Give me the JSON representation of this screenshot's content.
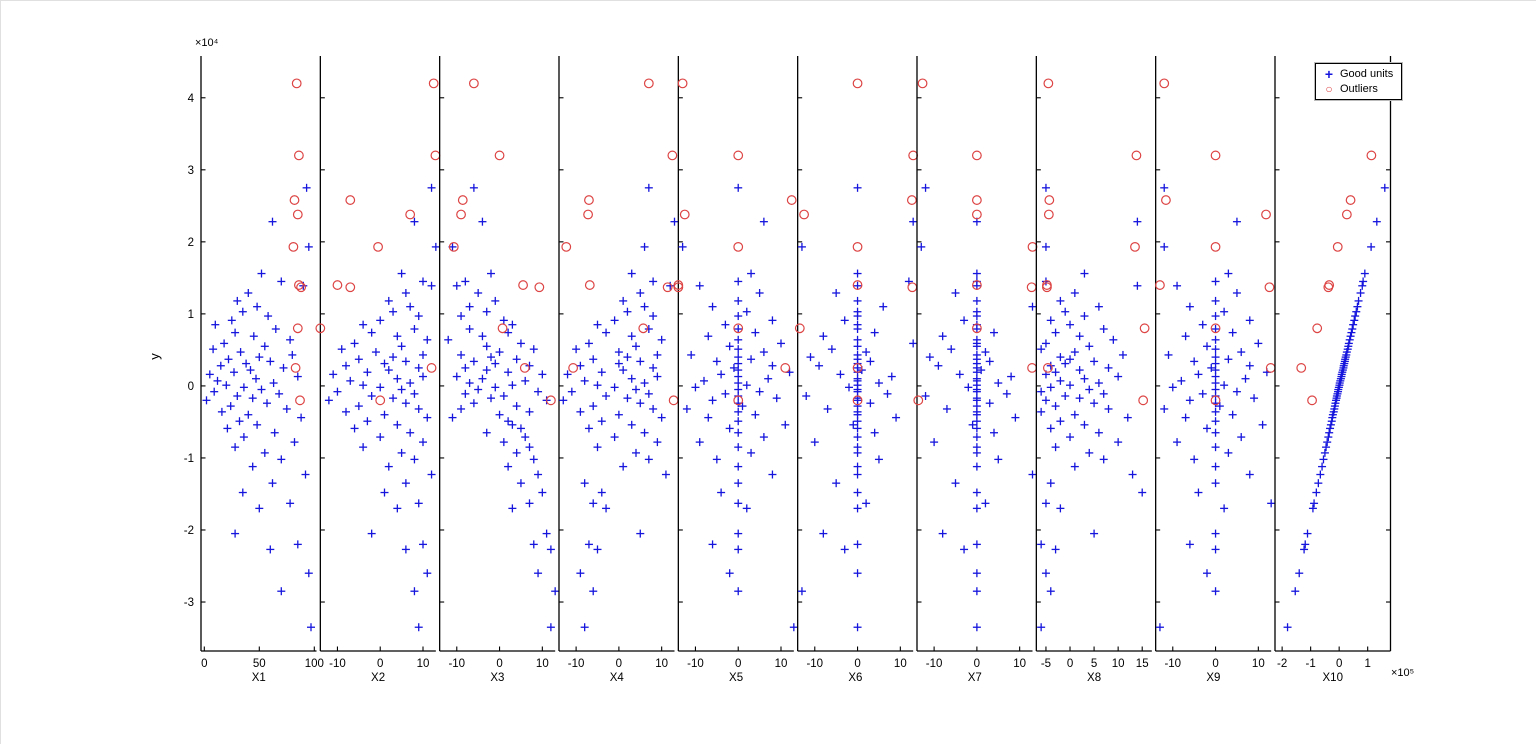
{
  "figure": {
    "ylabel": "y",
    "y_exponent_label": "×10⁴",
    "x10_exponent_label": "×10⁵"
  },
  "legend": {
    "good": "Good units",
    "outliers": "Outliers"
  },
  "chart_data": {
    "type": "scatter",
    "title": "",
    "xlabel": "",
    "ylabel": "y",
    "legend_position": "top-right",
    "grid": false,
    "marker_good_glyph": "+",
    "marker_outlier_glyph": "○",
    "colors": {
      "good": "#1515dd",
      "outlier": "#dd4444",
      "axis": "#000000"
    },
    "ylim": [
      -36800,
      45800
    ],
    "yticks": [
      {
        "v": 40000,
        "label": "4"
      },
      {
        "v": 30000,
        "label": "3"
      },
      {
        "v": 20000,
        "label": "2"
      },
      {
        "v": 10000,
        "label": "1"
      },
      {
        "v": 0,
        "label": "0"
      },
      {
        "v": -10000,
        "label": "-1"
      },
      {
        "v": -20000,
        "label": "-2"
      },
      {
        "v": -30000,
        "label": "-3"
      }
    ],
    "y_scale_note": "y tick labels are in units of 1e4",
    "y_good": [
      27500,
      22800,
      19300,
      15600,
      14500,
      13900,
      12900,
      11800,
      11000,
      10300,
      9700,
      9100,
      8500,
      7900,
      7400,
      6900,
      6400,
      5900,
      5500,
      5100,
      4700,
      4300,
      4000,
      3700,
      3400,
      3100,
      2800,
      2500,
      2200,
      1900,
      1600,
      1300,
      1000,
      700,
      400,
      100,
      -200,
      -500,
      -800,
      -1100,
      -1400,
      -1700,
      -2000,
      -2400,
      -2800,
      -3200,
      -3600,
      -4000,
      -4400,
      -4900,
      -5400,
      -5900,
      -6500,
      -7100,
      -7800,
      -8500,
      -9300,
      -10200,
      -11200,
      -12300,
      -13500,
      -14800,
      -16300,
      -17000,
      -20500,
      -22000,
      -22700,
      -26000,
      -28500,
      -33500
    ],
    "y_out": [
      42000,
      32000,
      25800,
      23800,
      19300,
      14000,
      13700,
      8000,
      2500,
      -2000
    ],
    "panels": [
      {
        "label": "X1",
        "xlim": [
          -3,
          102
        ],
        "xticks": [
          {
            "v": 0,
            "label": "0"
          },
          {
            "v": 50,
            "label": "50"
          },
          {
            "v": 100,
            "label": "100"
          }
        ],
        "x_good": [
          93,
          62,
          95,
          52,
          70,
          90,
          40,
          30,
          48,
          35,
          58,
          25,
          10,
          65,
          28,
          45,
          78,
          18,
          55,
          8,
          33,
          80,
          50,
          22,
          60,
          38,
          15,
          72,
          42,
          27,
          5,
          85,
          47,
          12,
          63,
          20,
          36,
          52,
          9,
          68,
          30,
          44,
          2,
          57,
          24,
          75,
          16,
          40,
          88,
          32,
          48,
          21,
          64,
          36,
          82,
          28,
          55,
          70,
          44,
          92,
          62,
          35,
          78,
          50,
          28,
          85,
          60,
          95,
          70,
          97
        ],
        "x_out": [
          84,
          86,
          82,
          85,
          81,
          86,
          88,
          85,
          83,
          87
        ]
      },
      {
        "label": "X2",
        "xlim": [
          -14,
          13
        ],
        "xticks": [
          {
            "v": -10,
            "label": "-10"
          },
          {
            "v": 0,
            "label": "0"
          },
          {
            "v": 10,
            "label": "10"
          }
        ],
        "x_good": [
          12,
          8,
          13,
          5,
          10,
          12,
          6,
          2,
          7,
          3,
          9,
          0,
          -4,
          8,
          -2,
          4,
          11,
          -6,
          5,
          -9,
          -1,
          10,
          3,
          -5,
          6,
          1,
          -8,
          9,
          2,
          -3,
          -11,
          10,
          4,
          -7,
          7,
          -4,
          0,
          5,
          -10,
          8,
          -2,
          3,
          -12,
          6,
          -5,
          9,
          -8,
          1,
          11,
          -3,
          4,
          -6,
          7,
          0,
          10,
          -4,
          5,
          8,
          2,
          12,
          6,
          1,
          9,
          4,
          -2,
          10,
          6,
          11,
          8,
          9
        ],
        "x_out": [
          12.5,
          12.9,
          -7,
          7,
          -0.5,
          -10,
          -7,
          -14,
          12,
          0
        ]
      },
      {
        "label": "X3",
        "xlim": [
          -14,
          13
        ],
        "xticks": [
          {
            "v": -10,
            "label": "-10"
          },
          {
            "v": 0,
            "label": "0"
          },
          {
            "v": 10,
            "label": "10"
          }
        ],
        "x_good": [
          -6,
          -4,
          -11,
          -2,
          -8,
          -10,
          -5,
          -1,
          -7,
          -3,
          -9,
          1,
          3,
          -7,
          2,
          -4,
          -12,
          5,
          -3,
          8,
          0,
          -9,
          -2,
          4,
          -6,
          -1,
          7,
          -8,
          -3,
          2,
          10,
          -10,
          -4,
          6,
          -7,
          3,
          -1,
          -5,
          9,
          -8,
          1,
          -2,
          11,
          -6,
          4,
          -9,
          7,
          0,
          -11,
          2,
          3,
          5,
          -3,
          6,
          1,
          7,
          4,
          8,
          2,
          9,
          5,
          10,
          7,
          3,
          11,
          8,
          12,
          9,
          13,
          12
        ],
        "x_out": [
          -6,
          0,
          -8.6,
          -9,
          -10.7,
          5.5,
          9.3,
          0.7,
          5.9,
          12
        ]
      },
      {
        "label": "X4",
        "xlim": [
          -14,
          13
        ],
        "xticks": [
          {
            "v": -10,
            "label": "-10"
          },
          {
            "v": 0,
            "label": "0"
          },
          {
            "v": 10,
            "label": "10"
          }
        ],
        "x_good": [
          7,
          13,
          6,
          3,
          8,
          12,
          5,
          1,
          6,
          2,
          8,
          -1,
          -5,
          7,
          -3,
          3,
          10,
          -7,
          4,
          -10,
          0,
          9,
          2,
          -6,
          5,
          0,
          -9,
          8,
          1,
          -4,
          -12,
          9,
          3,
          -8,
          6,
          -5,
          -1,
          4,
          -11,
          7,
          -3,
          2,
          -13,
          5,
          -6,
          8,
          -9,
          0,
          10,
          -4,
          3,
          -7,
          6,
          -1,
          9,
          -5,
          4,
          7,
          1,
          11,
          -8,
          -4,
          -6,
          -3,
          5,
          -7,
          -5,
          -9,
          -6,
          -8
        ],
        "x_out": [
          7,
          12.5,
          -7,
          -7.2,
          -12.3,
          -6.8,
          11.4,
          5.7,
          -10.7,
          12.8
        ]
      },
      {
        "label": "X5",
        "xlim": [
          -14,
          13
        ],
        "xticks": [
          {
            "v": -10,
            "label": "-10"
          },
          {
            "v": 0,
            "label": "0"
          },
          {
            "v": 10,
            "label": "10"
          }
        ],
        "x_good": [
          0,
          6,
          -13,
          3,
          0,
          -9,
          5,
          0,
          -6,
          2,
          0,
          8,
          -3,
          0,
          4,
          -7,
          0,
          10,
          -2,
          0,
          6,
          -11,
          0,
          3,
          -5,
          0,
          8,
          -1,
          0,
          12,
          -4,
          0,
          7,
          -8,
          0,
          2,
          -10,
          0,
          5,
          -3,
          0,
          9,
          -6,
          0,
          1,
          -12,
          0,
          4,
          -7,
          0,
          11,
          -2,
          0,
          6,
          -9,
          0,
          3,
          -5,
          0,
          8,
          0,
          -4,
          0,
          2,
          0,
          -6,
          0,
          -2,
          0,
          13
        ],
        "x_out": [
          -13,
          0,
          12.5,
          -12.5,
          0,
          -14,
          -14,
          0,
          11,
          0
        ]
      },
      {
        "label": "X6",
        "xlim": [
          -14,
          13
        ],
        "xticks": [
          {
            "v": -10,
            "label": "-10"
          },
          {
            "v": 0,
            "label": "0"
          },
          {
            "v": 10,
            "label": "10"
          }
        ],
        "x_good": [
          0,
          13,
          -13,
          0,
          12,
          0,
          -5,
          0,
          6,
          0,
          0,
          -3,
          0,
          0,
          4,
          -8,
          0,
          13,
          0,
          -6,
          2,
          0,
          -11,
          0,
          3,
          0,
          -9,
          0,
          1,
          0,
          -4,
          8,
          0,
          0,
          5,
          0,
          -2,
          0,
          0,
          7,
          -12,
          0,
          0,
          3,
          0,
          -7,
          0,
          0,
          9,
          0,
          -1,
          0,
          4,
          0,
          -10,
          0,
          0,
          5,
          0,
          0,
          -5,
          0,
          2,
          0,
          -8,
          0,
          -3,
          0,
          -13,
          0
        ],
        "x_out": [
          0,
          13,
          12.7,
          -12.5,
          0,
          0,
          12.8,
          -13.5,
          0,
          0
        ]
      },
      {
        "label": "X7",
        "xlim": [
          -14,
          13
        ],
        "xticks": [
          {
            "v": -10,
            "label": "-10"
          },
          {
            "v": 0,
            "label": "0"
          },
          {
            "v": 10,
            "label": "10"
          }
        ],
        "x_good": [
          -12,
          0,
          -13,
          0,
          0,
          0,
          -5,
          0,
          13,
          0,
          0,
          -3,
          0,
          0,
          4,
          -8,
          0,
          0,
          0,
          -6,
          2,
          0,
          -11,
          0,
          3,
          0,
          -9,
          0,
          1,
          0,
          -4,
          8,
          0,
          0,
          5,
          0,
          -2,
          0,
          0,
          7,
          -12,
          0,
          0,
          3,
          0,
          -7,
          0,
          0,
          9,
          0,
          -1,
          0,
          4,
          0,
          -10,
          0,
          0,
          5,
          0,
          13,
          -5,
          0,
          2,
          0,
          -8,
          0,
          -3,
          0,
          0,
          0
        ],
        "x_out": [
          -12.7,
          0,
          0,
          0,
          13,
          0,
          12.8,
          0,
          12.9,
          -13.7
        ]
      },
      {
        "label": "X8",
        "xlim": [
          -7,
          17
        ],
        "xticks": [
          {
            "v": -5,
            "label": "-5"
          },
          {
            "v": 0,
            "label": "0"
          },
          {
            "v": 5,
            "label": "5"
          },
          {
            "v": 10,
            "label": "10"
          },
          {
            "v": 15,
            "label": "15"
          }
        ],
        "x_good": [
          -5,
          14,
          -5,
          3,
          -5,
          14,
          1,
          -2,
          6,
          -1,
          3,
          -4,
          0,
          7,
          -3,
          2,
          9,
          -5,
          4,
          -6,
          1,
          11,
          -2,
          0,
          5,
          -1,
          -4,
          8,
          2,
          -3,
          -5,
          10,
          3,
          -2,
          6,
          0,
          -4,
          4,
          -6,
          7,
          -1,
          2,
          -5,
          5,
          -3,
          8,
          -6,
          1,
          12,
          -2,
          3,
          -4,
          6,
          0,
          10,
          -3,
          4,
          7,
          1,
          13,
          -4,
          15,
          -5,
          -2,
          5,
          -6,
          -3,
          -5,
          -4,
          -6
        ],
        "x_out": [
          -4.5,
          13.8,
          -4.3,
          -4.4,
          13.5,
          -4.8,
          -4.8,
          15.5,
          -4.6,
          15.2
        ]
      },
      {
        "label": "X9",
        "xlim": [
          -14,
          13
        ],
        "xticks": [
          {
            "v": -10,
            "label": "-10"
          },
          {
            "v": 0,
            "label": "0"
          },
          {
            "v": 10,
            "label": "10"
          }
        ],
        "x_good": [
          -12,
          5,
          -12,
          3,
          0,
          -9,
          5,
          0,
          -6,
          2,
          0,
          8,
          -3,
          0,
          4,
          -7,
          0,
          10,
          -2,
          0,
          6,
          -11,
          0,
          3,
          -5,
          0,
          8,
          -1,
          0,
          12,
          -4,
          0,
          7,
          -8,
          0,
          2,
          -10,
          0,
          5,
          -3,
          0,
          9,
          -6,
          0,
          1,
          -12,
          0,
          4,
          -7,
          0,
          11,
          -2,
          0,
          6,
          -9,
          0,
          3,
          -5,
          0,
          8,
          0,
          -4,
          13,
          2,
          0,
          -6,
          0,
          -2,
          0,
          -13
        ],
        "x_out": [
          -12,
          0,
          -11.6,
          11.8,
          0,
          -13,
          12.6,
          0,
          12.9,
          0
        ]
      },
      {
        "label": "X10",
        "xlim": [
          -225000,
          180000
        ],
        "xticks": [
          {
            "v": -200000,
            "label": "-2"
          },
          {
            "v": -100000,
            "label": "-1"
          },
          {
            "v": 0,
            "label": "0"
          },
          {
            "v": 100000,
            "label": "1"
          }
        ],
        "x_good": [
          160000,
          132000,
          112000,
          90000,
          84000,
          81000,
          75000,
          68000,
          64000,
          60000,
          56000,
          53000,
          49000,
          46000,
          43000,
          40000,
          37000,
          34000,
          32000,
          30000,
          27000,
          25000,
          23000,
          21000,
          20000,
          18000,
          16000,
          15000,
          13000,
          11000,
          9000,
          8000,
          6000,
          4000,
          2000,
          1000,
          -1000,
          -3000,
          -4000,
          -6000,
          -8000,
          -9000,
          -11000,
          -13000,
          -15000,
          -17000,
          -19000,
          -22000,
          -24000,
          -26000,
          -29000,
          -32000,
          -35000,
          -38000,
          -42000,
          -46000,
          -50000,
          -55000,
          -60000,
          -66000,
          -73000,
          -80000,
          -88000,
          -92000,
          -111000,
          -119000,
          -123000,
          -140000,
          -154000,
          -181000
        ],
        "x_out": [
          60000,
          113000,
          40000,
          27000,
          -5000,
          -35000,
          -38000,
          -77000,
          -133000,
          -95000
        ]
      }
    ]
  }
}
